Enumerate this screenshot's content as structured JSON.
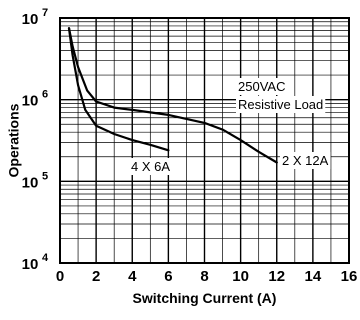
{
  "chart_data": {
    "type": "line",
    "xlabel": "Switching Current (A)",
    "ylabel": "Operations",
    "xlim": [
      0,
      16
    ],
    "ylim": [
      10000,
      10000000
    ],
    "yscale": "log",
    "grid": true,
    "x_ticks": [
      "0",
      "2",
      "4",
      "6",
      "8",
      "10",
      "12",
      "14",
      "16"
    ],
    "y_ticks": [
      {
        "base": "10",
        "exp": "4"
      },
      {
        "base": "10",
        "exp": "5"
      },
      {
        "base": "10",
        "exp": "6"
      },
      {
        "base": "10",
        "exp": "7"
      }
    ],
    "annotations": [
      "250VAC",
      "Resistive Load"
    ],
    "series": [
      {
        "name": "4 X 6A",
        "x": [
          0.5,
          0.7,
          1.0,
          1.4,
          2.0,
          3.0,
          4.0,
          5.0,
          6.0
        ],
        "y": [
          7500000,
          3500000,
          1500000,
          750000,
          480000,
          380000,
          320000,
          280000,
          240000
        ]
      },
      {
        "name": "2 X 12A",
        "x": [
          0.5,
          0.7,
          1.0,
          1.5,
          2.0,
          3.0,
          4.0,
          6.0,
          8.0,
          9.0,
          10.0,
          11.0,
          12.0
        ],
        "y": [
          7500000,
          4500000,
          2500000,
          1300000,
          950000,
          800000,
          750000,
          650000,
          520000,
          430000,
          320000,
          230000,
          170000
        ]
      }
    ]
  }
}
